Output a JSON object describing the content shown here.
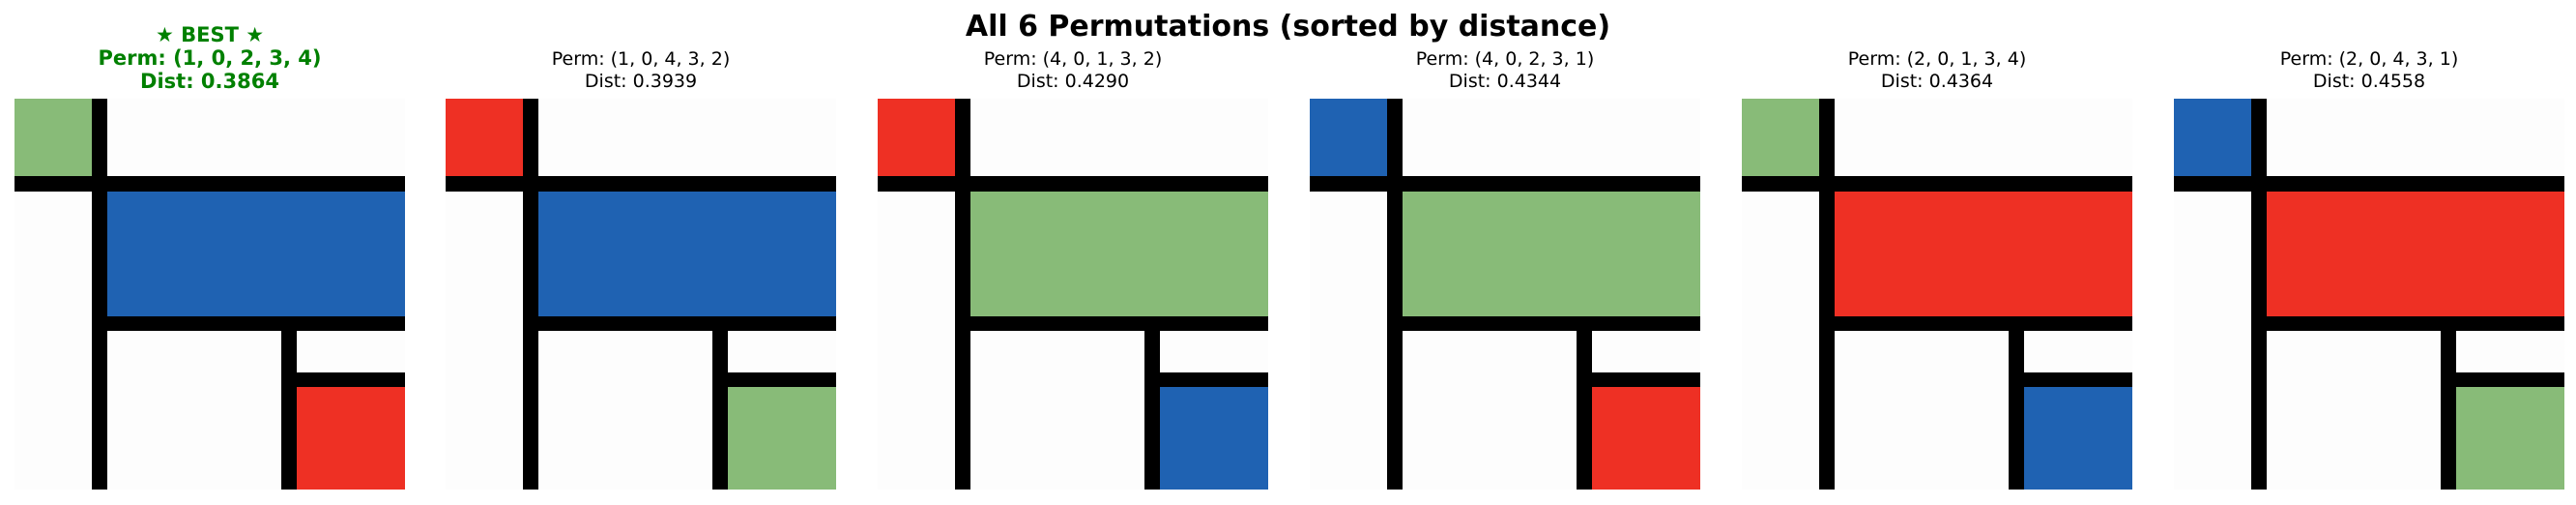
{
  "figure": {
    "title": "All 6 Permutations (sorted by distance)"
  },
  "colors": {
    "background": "#fdfdfd",
    "line": "#000000",
    "green": "#88bb78",
    "blue": "#1f62b2",
    "red": "#ee3024",
    "best_title": "#008000"
  },
  "panels": [
    {
      "badge": "★ BEST ★",
      "perm": "Perm: (1, 0, 2, 3, 4)",
      "dist": "Dist: 0.3864",
      "best": true,
      "fills": {
        "small": "green",
        "large": "blue",
        "bottom": "red"
      }
    },
    {
      "perm": "Perm: (1, 0, 4, 3, 2)",
      "dist": "Dist: 0.3939",
      "best": false,
      "fills": {
        "small": "red",
        "large": "blue",
        "bottom": "green"
      }
    },
    {
      "perm": "Perm: (4, 0, 1, 3, 2)",
      "dist": "Dist: 0.4290",
      "best": false,
      "fills": {
        "small": "red",
        "large": "green",
        "bottom": "blue"
      }
    },
    {
      "perm": "Perm: (4, 0, 2, 3, 1)",
      "dist": "Dist: 0.4344",
      "best": false,
      "fills": {
        "small": "blue",
        "large": "green",
        "bottom": "red"
      }
    },
    {
      "perm": "Perm: (2, 0, 1, 3, 4)",
      "dist": "Dist: 0.4364",
      "best": false,
      "fills": {
        "small": "green",
        "large": "red",
        "bottom": "blue"
      }
    },
    {
      "perm": "Perm: (2, 0, 4, 3, 1)",
      "dist": "Dist: 0.4558",
      "best": false,
      "fills": {
        "small": "blue",
        "large": "red",
        "bottom": "green"
      }
    }
  ]
}
